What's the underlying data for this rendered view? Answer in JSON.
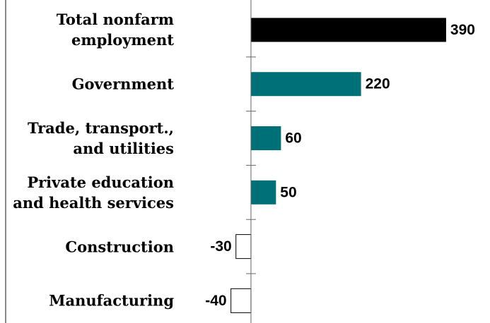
{
  "chart_data": {
    "type": "hbar",
    "categories": [
      "Total nonfarm\nemployment",
      "Government",
      "Trade, transport.,\nand utilities",
      "Private education\nand health services",
      "Construction",
      "Manufacturing"
    ],
    "values": [
      390,
      220,
      60,
      50,
      -30,
      -40
    ],
    "colors": [
      "#000000",
      "#007078",
      "#007078",
      "#007078",
      "#ffffff",
      "#ffffff"
    ],
    "xlim": [
      -120,
      450
    ]
  }
}
